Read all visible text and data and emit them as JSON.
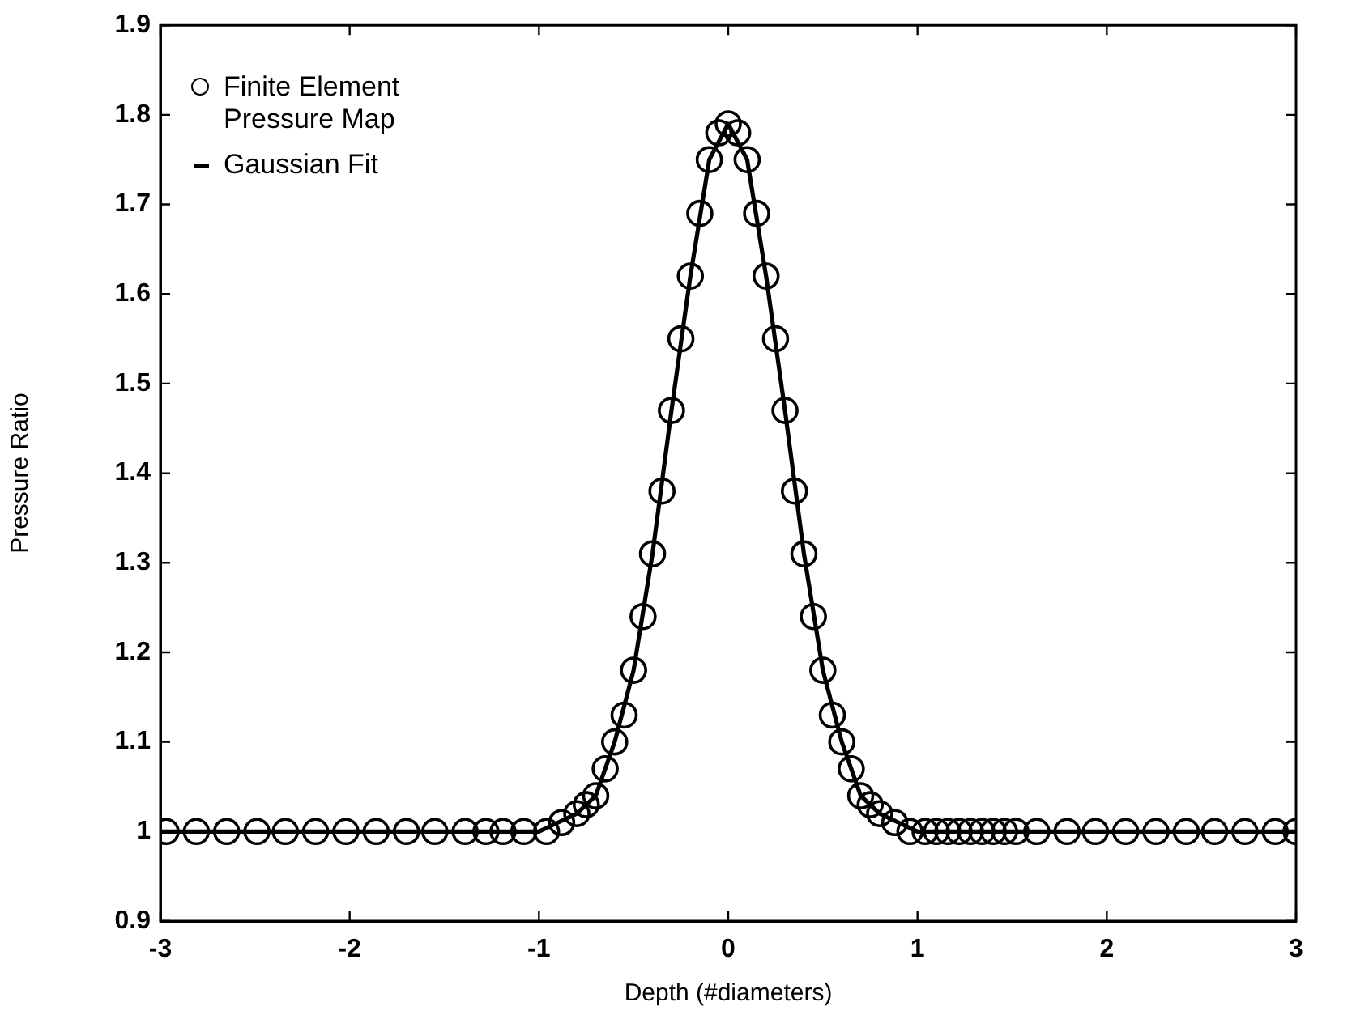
{
  "chart_data": {
    "type": "scatter",
    "xlabel": "Depth (#diameters)",
    "ylabel": "Pressure Ratio",
    "xlim": [
      -3,
      3
    ],
    "xticks": [
      -3,
      -2,
      -1,
      0,
      1,
      2,
      3
    ],
    "ylim": [
      0.9,
      1.9
    ],
    "yticks": [
      0.9,
      1,
      1.1,
      1.2,
      1.3,
      1.4,
      1.5,
      1.6,
      1.7,
      1.8,
      1.9
    ],
    "grid": false,
    "legend": "top left",
    "marker": "circle",
    "series": [
      {
        "name": "Finite Element Pressure Map",
        "color": "#000000",
        "x": [
          -2.97,
          -2.81,
          -2.65,
          -2.49,
          -2.34,
          -2.18,
          -2.02,
          -1.86,
          -1.7,
          -1.55,
          -1.39,
          -1.28,
          -1.19,
          -1.08,
          -0.96,
          -0.88,
          -0.8,
          -0.75,
          -0.7,
          -0.65,
          -0.6,
          -0.55,
          -0.5,
          -0.45,
          -0.4,
          -0.35,
          -0.3,
          -0.25,
          -0.2,
          -0.15,
          -0.1,
          -0.05,
          0,
          0.05,
          0.1,
          0.15,
          0.2,
          0.25,
          0.3,
          0.35,
          0.4,
          0.45,
          0.5,
          0.55,
          0.6,
          0.65,
          0.7,
          0.75,
          0.8,
          0.88,
          0.96,
          1.04,
          1.1,
          1.16,
          1.22,
          1.28,
          1.34,
          1.4,
          1.46,
          1.52,
          1.63,
          1.79,
          1.94,
          2.1,
          2.26,
          2.42,
          2.57,
          2.73,
          2.89,
          3.0
        ],
        "values": [
          1,
          1,
          1,
          1,
          1,
          1,
          1,
          1,
          1,
          1,
          1,
          1,
          1,
          1,
          1.0,
          1.01,
          1.02,
          1.03,
          1.04,
          1.07,
          1.1,
          1.13,
          1.18,
          1.24,
          1.31,
          1.38,
          1.47,
          1.55,
          1.62,
          1.69,
          1.75,
          1.78,
          1.79,
          1.78,
          1.75,
          1.69,
          1.62,
          1.55,
          1.47,
          1.38,
          1.31,
          1.24,
          1.18,
          1.13,
          1.1,
          1.07,
          1.04,
          1.03,
          1.02,
          1.01,
          1.0,
          1,
          1,
          1,
          1,
          1,
          1,
          1,
          1,
          1,
          1,
          1,
          1,
          1,
          1,
          1,
          1,
          1,
          1,
          1
        ]
      },
      {
        "name": "Gaussian Fit",
        "type": "line",
        "color": "#000000",
        "marker": "none",
        "line_style": "solid",
        "x": [
          -3,
          -1.2,
          -1.0,
          -0.9,
          -0.8,
          -0.7,
          -0.6,
          -0.5,
          -0.4,
          -0.3,
          -0.2,
          -0.1,
          0,
          0.1,
          0.2,
          0.3,
          0.4,
          0.5,
          0.6,
          0.7,
          0.8,
          0.9,
          1.0,
          1.2,
          3
        ],
        "values": [
          1,
          1,
          1.0,
          1.01,
          1.02,
          1.04,
          1.1,
          1.18,
          1.31,
          1.47,
          1.62,
          1.75,
          1.79,
          1.75,
          1.62,
          1.47,
          1.31,
          1.18,
          1.1,
          1.04,
          1.02,
          1.01,
          1.0,
          1,
          1
        ]
      }
    ]
  }
}
